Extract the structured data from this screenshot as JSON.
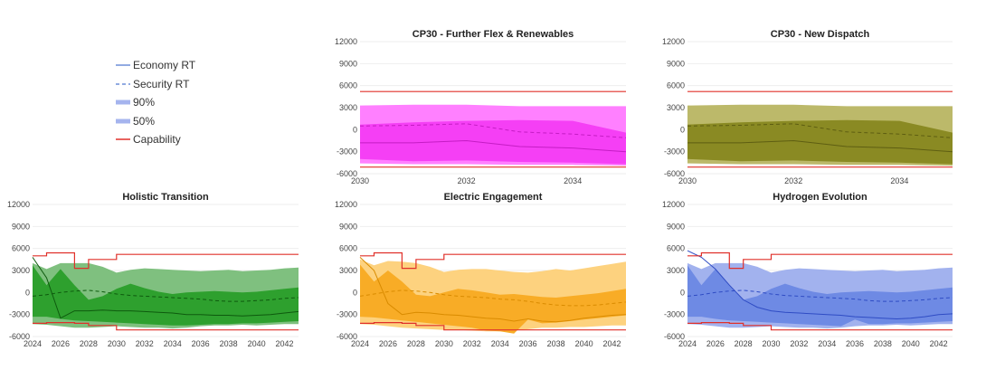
{
  "legend": {
    "items": [
      {
        "label": "Economy RT",
        "style": "solid-line",
        "color": "#6e8fd8"
      },
      {
        "label": "Security RT",
        "style": "dashed-line",
        "color": "#6e8fd8"
      },
      {
        "label": "90%",
        "style": "thick-line",
        "color": "#a5b4ee"
      },
      {
        "label": "50%",
        "style": "thick-line",
        "color": "#a5b4ee"
      },
      {
        "label": "Capability",
        "style": "solid-line",
        "color": "#e0302a"
      }
    ]
  },
  "chart_data": [
    {
      "type": "area",
      "title": "CP30 - Further Flex & Renewables",
      "xlabel": "",
      "ylabel": "",
      "xlim": [
        2030,
        2035
      ],
      "ylim": [
        -6000,
        12000
      ],
      "xticks": [
        2030,
        2032,
        2034
      ],
      "yticks": [
        12000,
        9000,
        6000,
        3000,
        0,
        -3000,
        -6000
      ],
      "colors": {
        "band90": "#ff80ff",
        "band50": "#f53ff5",
        "line": "#c41cc4"
      },
      "capability": {
        "x": [
          2030,
          2035
        ],
        "upper": [
          5200,
          5200
        ],
        "lower": [
          -5100,
          -5100
        ]
      },
      "x": [
        2030,
        2031,
        2032,
        2033,
        2034,
        2035
      ],
      "series": [
        {
          "name": "Economy RT",
          "values": [
            -1800,
            -1800,
            -1500,
            -2300,
            -2500,
            -3000
          ]
        },
        {
          "name": "Security RT",
          "values": [
            500,
            600,
            800,
            -300,
            -600,
            -1100
          ]
        },
        {
          "name": "90% upper",
          "values": [
            3300,
            3400,
            3400,
            3200,
            3200,
            3200
          ]
        },
        {
          "name": "90% lower",
          "values": [
            -4600,
            -4700,
            -4700,
            -4800,
            -4800,
            -4900
          ]
        },
        {
          "name": "50% upper",
          "values": [
            700,
            1000,
            1200,
            1300,
            1200,
            -400
          ]
        },
        {
          "name": "50% lower",
          "values": [
            -4000,
            -4300,
            -4200,
            -4400,
            -4500,
            -4700
          ]
        }
      ]
    },
    {
      "type": "area",
      "title": "CP30 - New Dispatch",
      "xlabel": "",
      "ylabel": "",
      "xlim": [
        2030,
        2035
      ],
      "ylim": [
        -6000,
        12000
      ],
      "xticks": [
        2030,
        2032,
        2034
      ],
      "yticks": [
        12000,
        9000,
        6000,
        3000,
        0,
        -3000,
        -6000
      ],
      "colors": {
        "band90": "#bcb96a",
        "band50": "#8a8a23",
        "line": "#5e5e12"
      },
      "capability": {
        "x": [
          2030,
          2035
        ],
        "upper": [
          5200,
          5200
        ],
        "lower": [
          -5100,
          -5100
        ]
      },
      "x": [
        2030,
        2031,
        2032,
        2033,
        2034,
        2035
      ],
      "series": [
        {
          "name": "Economy RT",
          "values": [
            -1800,
            -1800,
            -1500,
            -2300,
            -2500,
            -3000
          ]
        },
        {
          "name": "Security RT",
          "values": [
            500,
            600,
            800,
            -300,
            -600,
            -1100
          ]
        },
        {
          "name": "90% upper",
          "values": [
            3300,
            3400,
            3400,
            3200,
            3200,
            3200
          ]
        },
        {
          "name": "90% lower",
          "values": [
            -4600,
            -4700,
            -4700,
            -4800,
            -4800,
            -4900
          ]
        },
        {
          "name": "50% upper",
          "values": [
            700,
            1000,
            1200,
            1300,
            1200,
            -400
          ]
        },
        {
          "name": "50% lower",
          "values": [
            -4000,
            -4300,
            -4200,
            -4400,
            -4500,
            -4700
          ]
        }
      ]
    },
    {
      "type": "area",
      "title": "Holistic Transition",
      "xlabel": "",
      "ylabel": "",
      "xlim": [
        2024,
        2043
      ],
      "ylim": [
        -6000,
        12000
      ],
      "xticks": [
        2024,
        2026,
        2028,
        2030,
        2032,
        2034,
        2036,
        2038,
        2040,
        2042
      ],
      "yticks": [
        12000,
        9000,
        6000,
        3000,
        0,
        -3000,
        -6000
      ],
      "colors": {
        "band90": "#7fc07f",
        "band50": "#2ea02e",
        "line": "#0e5a0e"
      },
      "capability": {
        "x": [
          2024,
          2025,
          2027,
          2028,
          2030,
          2043
        ],
        "upper": [
          5000,
          5400,
          3300,
          4500,
          5200,
          5200
        ],
        "lower": [
          -4200,
          -4100,
          -4200,
          -4500,
          -5100,
          -5100
        ]
      },
      "x": [
        2024,
        2025,
        2026,
        2027,
        2028,
        2029,
        2030,
        2031,
        2032,
        2033,
        2034,
        2035,
        2036,
        2037,
        2038,
        2039,
        2040,
        2041,
        2042,
        2043
      ],
      "series": [
        {
          "name": "Economy RT",
          "values": [
            4800,
            2000,
            -3500,
            -2500,
            -2500,
            -2400,
            -2500,
            -2500,
            -2600,
            -2700,
            -2800,
            -3000,
            -3000,
            -3100,
            -3100,
            -3200,
            -3100,
            -3000,
            -2800,
            -2600
          ]
        },
        {
          "name": "Security RT",
          "values": [
            -500,
            -300,
            0,
            200,
            300,
            100,
            -200,
            -400,
            -500,
            -600,
            -700,
            -800,
            -900,
            -1100,
            -1200,
            -1200,
            -1100,
            -1000,
            -800,
            -700
          ]
        },
        {
          "name": "90% upper",
          "values": [
            4000,
            3200,
            4000,
            4000,
            4000,
            3500,
            2700,
            3100,
            3300,
            3200,
            3100,
            3000,
            2900,
            3000,
            3100,
            2900,
            3000,
            3100,
            3300,
            3400
          ]
        },
        {
          "name": "90% lower",
          "values": [
            -4300,
            -4400,
            -4600,
            -4800,
            -4800,
            -4700,
            -4600,
            -4700,
            -4800,
            -4800,
            -4900,
            -4800,
            -4600,
            -4500,
            -4500,
            -4400,
            -4500,
            -4400,
            -4300,
            -4300
          ]
        },
        {
          "name": "50% upper",
          "values": [
            3700,
            1000,
            3200,
            1000,
            -1000,
            -500,
            500,
            1200,
            600,
            100,
            -200,
            0,
            100,
            200,
            100,
            0,
            100,
            300,
            500,
            700
          ]
        },
        {
          "name": "50% lower",
          "values": [
            -3300,
            -3300,
            -3600,
            -3800,
            -3900,
            -4000,
            -4100,
            -4200,
            -4300,
            -4400,
            -4500,
            -4500,
            -4400,
            -4300,
            -4300,
            -4200,
            -4200,
            -4100,
            -4000,
            -3900
          ]
        }
      ]
    },
    {
      "type": "area",
      "title": "Electric Engagement",
      "xlabel": "",
      "ylabel": "",
      "xlim": [
        2024,
        2043
      ],
      "ylim": [
        -6000,
        12000
      ],
      "xticks": [
        2024,
        2026,
        2028,
        2030,
        2032,
        2034,
        2036,
        2038,
        2040,
        2042
      ],
      "yticks": [
        12000,
        9000,
        6000,
        3000,
        0,
        -3000,
        -6000
      ],
      "colors": {
        "band90": "#fdd27f",
        "band50": "#f8ac26",
        "line": "#d98b00"
      },
      "capability": {
        "x": [
          2024,
          2025,
          2027,
          2028,
          2030,
          2043
        ],
        "upper": [
          5000,
          5400,
          3300,
          4500,
          5200,
          5200
        ],
        "lower": [
          -4200,
          -4100,
          -4200,
          -4500,
          -5100,
          -5100
        ]
      },
      "x": [
        2024,
        2025,
        2026,
        2027,
        2028,
        2029,
        2030,
        2031,
        2032,
        2033,
        2034,
        2035,
        2036,
        2037,
        2038,
        2039,
        2040,
        2041,
        2042,
        2043
      ],
      "series": [
        {
          "name": "Economy RT",
          "values": [
            4800,
            3000,
            -1500,
            -3000,
            -2700,
            -2800,
            -3000,
            -3100,
            -3300,
            -3500,
            -3600,
            -3900,
            -3600,
            -3900,
            -4000,
            -3800,
            -3500,
            -3300,
            -3100,
            -3000
          ]
        },
        {
          "name": "Security RT",
          "values": [
            -500,
            -200,
            100,
            300,
            200,
            0,
            -300,
            -500,
            -600,
            -700,
            -900,
            -1000,
            -1200,
            -1500,
            -1700,
            -1800,
            -1800,
            -1700,
            -1500,
            -1300
          ]
        },
        {
          "name": "90% upper",
          "values": [
            4500,
            3700,
            4300,
            4200,
            4000,
            3500,
            2800,
            3100,
            3200,
            3200,
            3000,
            2800,
            2700,
            2900,
            3200,
            3000,
            3300,
            3600,
            3900,
            4200
          ]
        },
        {
          "name": "90% lower",
          "values": [
            -4300,
            -4400,
            -4600,
            -4800,
            -4900,
            -5000,
            -5100,
            -5100,
            -5200,
            -5300,
            -5300,
            -5200,
            -5000,
            -4800,
            -4800,
            -4700,
            -4700,
            -4600,
            -4500,
            -4500
          ]
        },
        {
          "name": "50% upper",
          "values": [
            3800,
            1500,
            3000,
            1500,
            -300,
            -500,
            0,
            500,
            300,
            0,
            -300,
            -200,
            -400,
            -600,
            -700,
            -500,
            -300,
            -100,
            200,
            500
          ]
        },
        {
          "name": "50% lower",
          "values": [
            -3300,
            -3400,
            -3600,
            -3800,
            -4000,
            -4200,
            -4400,
            -4600,
            -4800,
            -5200,
            -5300,
            -5600,
            -3700,
            -4200,
            -4100,
            -3900,
            -3700,
            -3500,
            -3300,
            -3100
          ]
        }
      ]
    },
    {
      "type": "area",
      "title": "Hydrogen Evolution",
      "xlabel": "",
      "ylabel": "",
      "xlim": [
        2024,
        2043
      ],
      "ylim": [
        -6000,
        12000
      ],
      "xticks": [
        2024,
        2026,
        2028,
        2030,
        2032,
        2034,
        2036,
        2038,
        2040,
        2042
      ],
      "yticks": [
        12000,
        9000,
        6000,
        3000,
        0,
        -3000,
        -6000
      ],
      "colors": {
        "band90": "#a2b2ee",
        "band50": "#6e8ae4",
        "line": "#2f4cc4"
      },
      "capability": {
        "x": [
          2024,
          2025,
          2027,
          2028,
          2030,
          2043
        ],
        "upper": [
          5000,
          5400,
          3300,
          4500,
          5200,
          5200
        ],
        "lower": [
          -4200,
          -4100,
          -4200,
          -4500,
          -5100,
          -5100
        ]
      },
      "x": [
        2024,
        2025,
        2026,
        2027,
        2028,
        2029,
        2030,
        2031,
        2032,
        2033,
        2034,
        2035,
        2036,
        2037,
        2038,
        2039,
        2040,
        2041,
        2042,
        2043
      ],
      "series": [
        {
          "name": "Economy RT",
          "values": [
            5700,
            4800,
            3200,
            1000,
            -1000,
            -2000,
            -2500,
            -2700,
            -2800,
            -2900,
            -3000,
            -3100,
            -3300,
            -3400,
            -3500,
            -3600,
            -3500,
            -3300,
            -3000,
            -2900
          ]
        },
        {
          "name": "Security RT",
          "values": [
            -500,
            -300,
            0,
            200,
            300,
            100,
            -200,
            -400,
            -500,
            -600,
            -700,
            -800,
            -900,
            -1100,
            -1200,
            -1200,
            -1100,
            -1000,
            -800,
            -700
          ]
        },
        {
          "name": "90% upper",
          "values": [
            4000,
            3200,
            4000,
            4000,
            4000,
            3500,
            2700,
            3100,
            3300,
            3200,
            3100,
            3000,
            2900,
            3000,
            3100,
            2900,
            3000,
            3100,
            3300,
            3400
          ]
        },
        {
          "name": "90% lower",
          "values": [
            -4300,
            -4400,
            -4600,
            -4800,
            -4800,
            -4700,
            -4600,
            -4700,
            -4800,
            -4800,
            -4900,
            -4800,
            -4600,
            -4500,
            -4500,
            -4400,
            -4500,
            -4400,
            -4300,
            -4300
          ]
        },
        {
          "name": "50% upper",
          "values": [
            3700,
            1000,
            3200,
            1000,
            -1000,
            -500,
            500,
            1200,
            600,
            100,
            -200,
            0,
            100,
            200,
            100,
            0,
            100,
            300,
            500,
            700
          ]
        },
        {
          "name": "50% lower",
          "values": [
            -3300,
            -3300,
            -3600,
            -3800,
            -3900,
            -4000,
            -4100,
            -4200,
            -4300,
            -4400,
            -4500,
            -4600,
            -3700,
            -4300,
            -4300,
            -4200,
            -4200,
            -4100,
            -4000,
            -3900
          ]
        }
      ]
    }
  ]
}
